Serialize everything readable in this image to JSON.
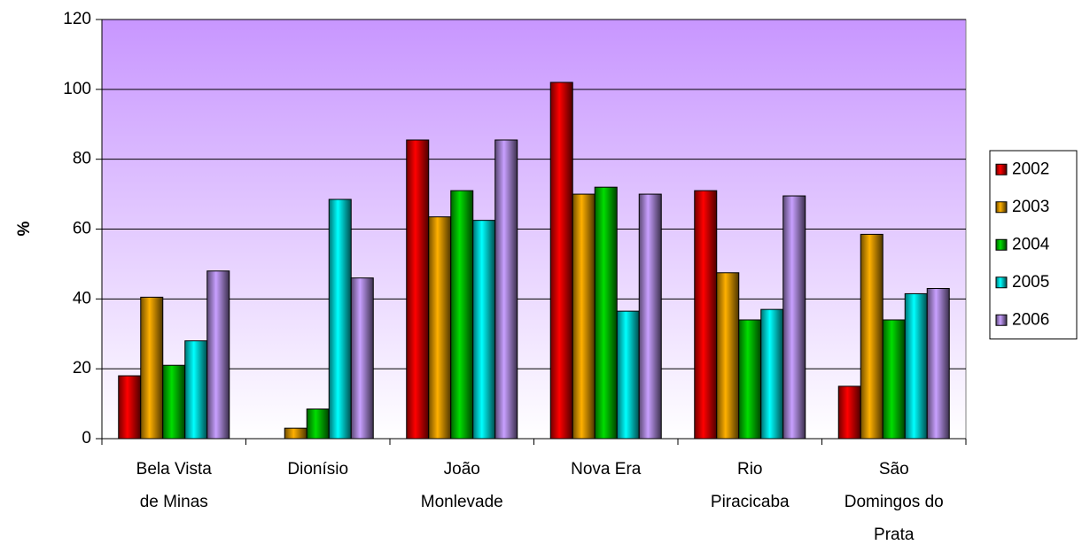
{
  "chart_data": {
    "type": "bar",
    "y_label": "%",
    "categories": [
      "Bela Vista\nde Minas",
      "Dionísio",
      "João\nMonlevade",
      "Nova Era",
      "Rio\nPiracicaba",
      "São\nDomingos do\nPrata"
    ],
    "series": [
      {
        "name": "2002",
        "color": "#ff0000",
        "values": [
          18,
          0,
          85.5,
          102,
          71,
          15
        ]
      },
      {
        "name": "2003",
        "color": "#ffb000",
        "values": [
          40.5,
          3,
          63.5,
          70,
          47.5,
          58.5
        ]
      },
      {
        "name": "2004",
        "color": "#00dd00",
        "values": [
          21,
          8.5,
          71,
          72,
          34,
          34
        ]
      },
      {
        "name": "2005",
        "color": "#00ffff",
        "values": [
          28,
          68.5,
          62.5,
          36.5,
          37,
          41.5
        ]
      },
      {
        "name": "2006",
        "color": "#c8a0ff",
        "values": [
          48,
          46,
          85.5,
          70,
          69.5,
          43
        ]
      }
    ],
    "ylim": [
      0,
      120
    ],
    "yticks": [
      0,
      20,
      40,
      60,
      80,
      100,
      120
    ],
    "grid": true,
    "legend": "right"
  }
}
